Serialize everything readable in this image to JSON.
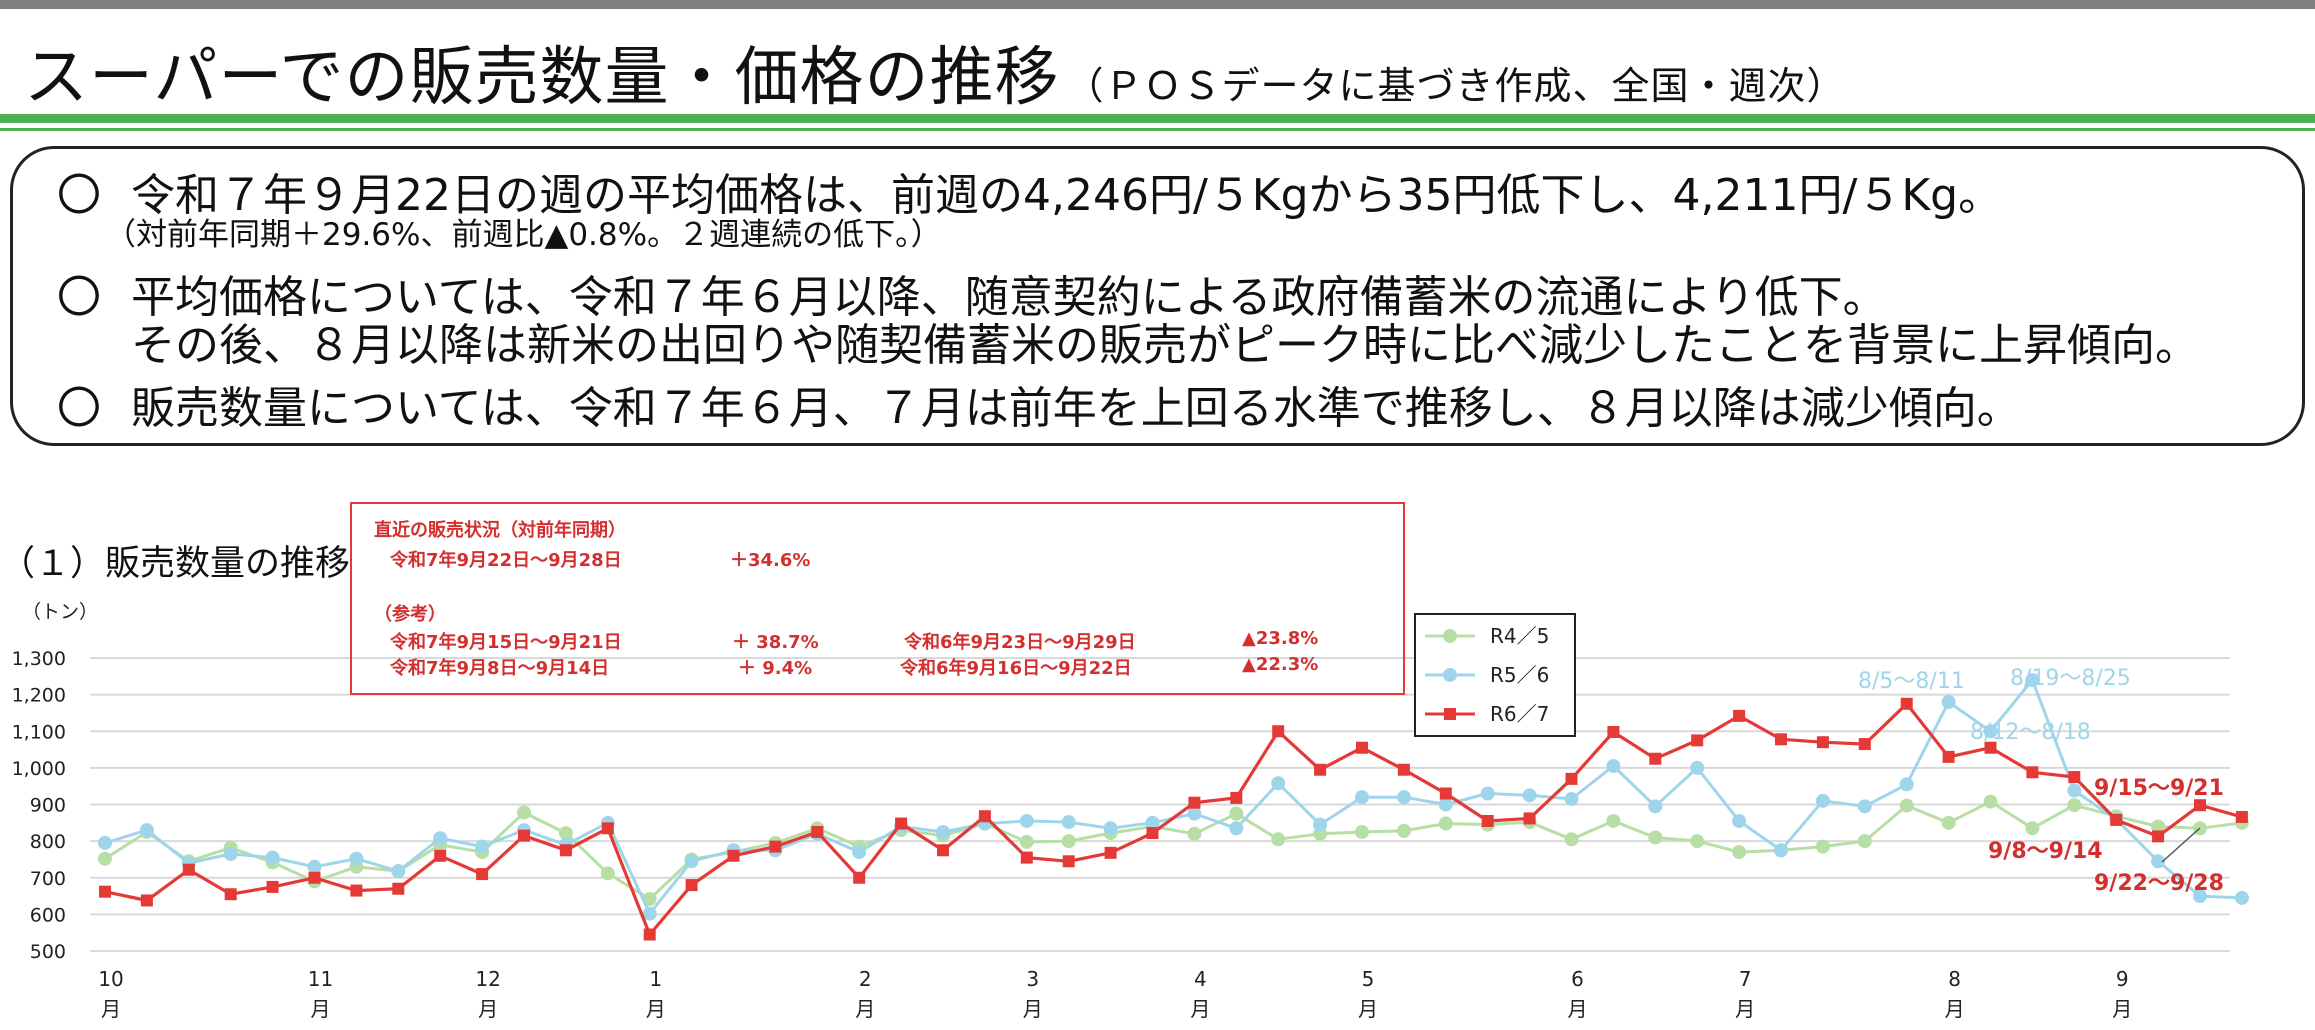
{
  "header": {
    "title": "スーパーでの販売数量・価格の推移",
    "subtitle": "（ＰＯＳデータに基づき作成、全国・週次）"
  },
  "summary": {
    "bullet_mark": "〇",
    "point1": "令和７年９月22日の週の平均価格は、前週の4,246円/５Kgから35円低下し、4,211円/５Kg。",
    "point1_sub": "（対前年同期＋29.6%、前週比▲0.8%。２週連続の低下。）",
    "point2_line1": "平均価格については、令和７年６月以降、随意契約による政府備蓄米の流通により低下。",
    "point2_line2": "その後、８月以降は新米の出回りや随契備蓄米の販売がピーク時に比べ減少したことを背景に上昇傾向。",
    "point3": "販売数量については、令和７年６月、７月は前年を上回る水準で推移し、８月以降は減少傾向。"
  },
  "section_title": "（１）販売数量の推移",
  "annotation": {
    "heading": "直近の販売状況（対前年同期）",
    "row1_period": "令和7年9月22日～9月28日",
    "row1_value": "＋34.6%",
    "ref_label": "（参考）",
    "row2_period": "令和7年9月15日～9月21日",
    "row2_value": "＋ 38.7%",
    "row2_prev_period": "令和6年9月23日～9月29日",
    "row2_prev_value": "▲23.8%",
    "row3_period": "令和7年9月8日～9月14日",
    "row3_value": "＋ 9.4%",
    "row3_prev_period": "令和6年9月16日～9月22日",
    "row3_prev_value": "▲22.3%"
  },
  "chart_data": {
    "type": "line",
    "ylabel": "（トン）",
    "ylim": [
      500,
      1300
    ],
    "yticks": [
      "1,300",
      "1,200",
      "1,100",
      "1,000",
      "900",
      "800",
      "700",
      "600",
      "500"
    ],
    "month_labels": [
      {
        "num": "10",
        "unit": "月",
        "week": 0
      },
      {
        "num": "11",
        "unit": "月",
        "week": 5
      },
      {
        "num": "12",
        "unit": "月",
        "week": 9
      },
      {
        "num": "1",
        "unit": "月",
        "week": 13
      },
      {
        "num": "2",
        "unit": "月",
        "week": 18
      },
      {
        "num": "3",
        "unit": "月",
        "week": 22
      },
      {
        "num": "4",
        "unit": "月",
        "week": 26
      },
      {
        "num": "5",
        "unit": "月",
        "week": 30
      },
      {
        "num": "6",
        "unit": "月",
        "week": 35
      },
      {
        "num": "7",
        "unit": "月",
        "week": 39
      },
      {
        "num": "8",
        "unit": "月",
        "week": 44
      },
      {
        "num": "9",
        "unit": "月",
        "week": 48
      }
    ],
    "grid": true,
    "legend_position": "top-right",
    "series": [
      {
        "name": "R4／5",
        "color": "#b7dfa5",
        "marker": "circle",
        "values": [
          752,
          825,
          745,
          782,
          742,
          690,
          730,
          718,
          790,
          770,
          878,
          822,
          712,
          642,
          750,
          770,
          795,
          835,
          785,
          830,
          815,
          848,
          798,
          800,
          822,
          840,
          820,
          875,
          805,
          820,
          825,
          828,
          848,
          845,
          852,
          805,
          855,
          810,
          800,
          770,
          775,
          785,
          800,
          897,
          850,
          908,
          835,
          898,
          868,
          840,
          835,
          850
        ]
      },
      {
        "name": "R5／6",
        "color": "#9fd5ea",
        "marker": "circle",
        "values": [
          795,
          830,
          740,
          765,
          755,
          730,
          752,
          718,
          808,
          785,
          830,
          790,
          850,
          602,
          745,
          775,
          775,
          820,
          770,
          840,
          825,
          848,
          855,
          852,
          835,
          850,
          875,
          835,
          958,
          845,
          920,
          920,
          900,
          930,
          925,
          915,
          1005,
          895,
          1000,
          855,
          775,
          910,
          895,
          955,
          1180,
          1100,
          1240,
          938,
          860,
          745,
          650,
          645
        ]
      },
      {
        "name": "R6／7",
        "color": "#e53935",
        "marker": "square",
        "values": [
          662,
          638,
          722,
          655,
          675,
          700,
          665,
          670,
          760,
          710,
          815,
          775,
          835,
          545,
          680,
          760,
          785,
          825,
          700,
          848,
          775,
          868,
          755,
          745,
          768,
          822,
          905,
          918,
          1100,
          995,
          1055,
          995,
          930,
          855,
          862,
          970,
          1098,
          1025,
          1075,
          1142,
          1078,
          1070,
          1065,
          1175,
          1030,
          1055,
          988,
          975,
          858,
          813,
          898,
          866
        ]
      }
    ],
    "annotations": [
      {
        "text": "8/5～8/11",
        "color": "#9fd5ea"
      },
      {
        "text": "8/19～8/25",
        "color": "#9fd5ea"
      },
      {
        "text": "8/12～8/18",
        "color": "#9fd5ea"
      },
      {
        "text": "9/15～9/21",
        "color": "#d32f2f"
      },
      {
        "text": "9/8～9/14",
        "color": "#d32f2f"
      },
      {
        "text": "9/22～9/28",
        "color": "#d32f2f"
      }
    ]
  }
}
